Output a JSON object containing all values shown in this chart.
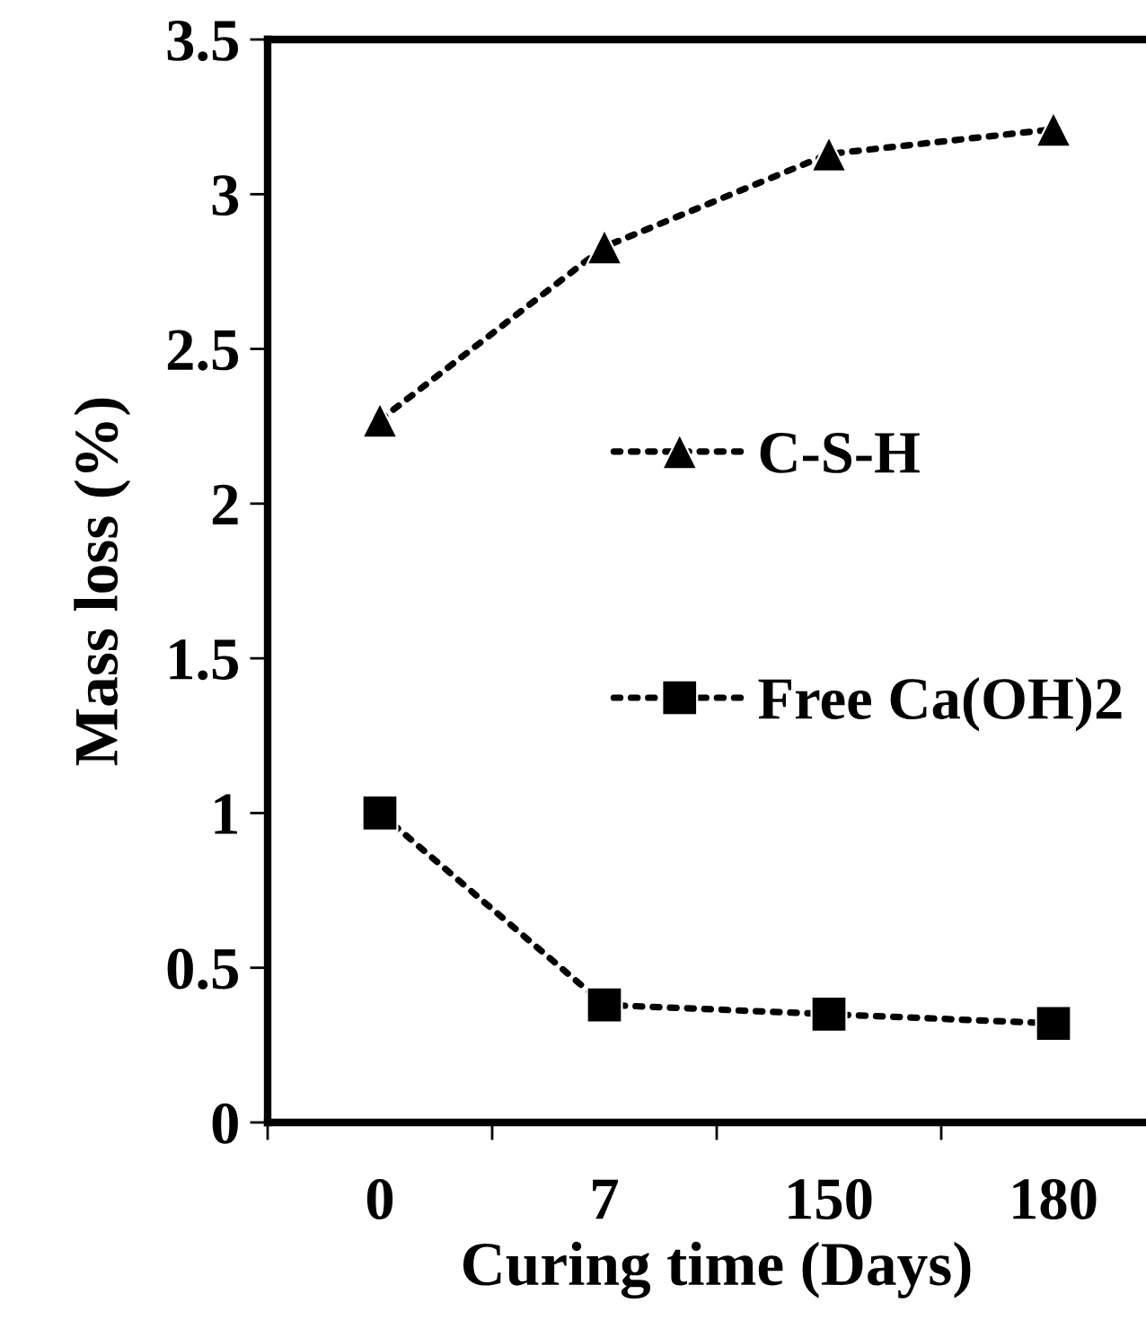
{
  "chart_data": {
    "type": "line",
    "xlabel": "Curing time (Days)",
    "ylabel": "Mass loss (%)",
    "categories": [
      "0",
      "7",
      "150",
      "180"
    ],
    "series": [
      {
        "name": "C-S-H",
        "color": "#000000",
        "values": [
          2.27,
          2.83,
          3.13,
          3.21
        ],
        "marker": "triangle"
      },
      {
        "name": "Free Ca(OH)2",
        "color": "#000000",
        "values": [
          1.0,
          0.38,
          0.35,
          0.32
        ],
        "marker": "square"
      }
    ],
    "ylim": [
      0,
      3.5
    ],
    "yticks": [
      0,
      0.5,
      1,
      1.5,
      2,
      2.5,
      3,
      3.5
    ],
    "grid": false,
    "legend": "right",
    "line_style": "dotted"
  }
}
